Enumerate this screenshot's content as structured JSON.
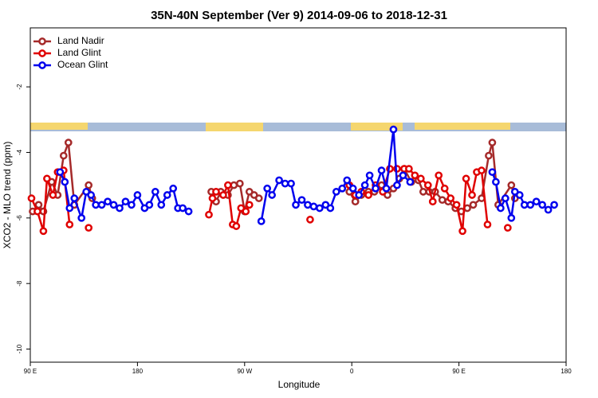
{
  "chart_data": {
    "type": "line",
    "title": "35N-40N September (Ver 9)   2014-09-06 to 2018-12-31",
    "xlabel": "Longitude",
    "ylabel": "XCO2 - MLO trend (ppm)",
    "xlim": [
      90,
      540
    ],
    "ylim": [
      -10.4,
      -0.2
    ],
    "xticks": [
      {
        "value": 90,
        "label": "90 E"
      },
      180,
      {
        "value": 270,
        "label": "90 W"
      },
      {
        "value": 360,
        "label": "0"
      },
      {
        "value": 450,
        "label": "90 E"
      },
      {
        "value": 540,
        "label": "180"
      }
    ],
    "yticks": [
      -2,
      -4,
      -6,
      -8,
      -10
    ],
    "legend": "upper left",
    "series": [
      {
        "name": "Land Nadir",
        "color": "#a52a2a",
        "x": [
          92,
          97,
          101,
          108,
          113,
          118,
          122,
          127,
          139,
          142,
          null,
          242,
          246,
          250,
          256,
          261,
          266,
          270,
          274,
          278,
          282,
          null,
          358,
          363,
          368,
          374,
          379,
          385,
          390,
          395,
          400,
          404,
          410,
          416,
          420,
          425,
          430,
          436,
          441,
          447,
          452,
          457,
          462,
          469,
          475,
          478,
          483,
          494,
          497
        ],
        "values": [
          -5.8,
          -5.6,
          -5.8,
          -4.9,
          -5.3,
          -4.1,
          -3.7,
          -5.6,
          -5.0,
          -5.4,
          null,
          -5.2,
          -5.5,
          -5.2,
          -5.3,
          -5.0,
          -4.95,
          -5.8,
          -5.2,
          -5.3,
          -5.4,
          null,
          -5.2,
          -5.5,
          -5.3,
          -5.2,
          -5.2,
          -5.0,
          -5.3,
          -5.1,
          -4.8,
          -4.5,
          -4.9,
          -4.85,
          -5.2,
          -5.2,
          -5.2,
          -5.45,
          -5.5,
          -5.7,
          -5.8,
          -5.7,
          -5.6,
          -5.4,
          -4.1,
          -3.7,
          -5.6,
          -5.0,
          -5.4
        ]
      },
      {
        "name": "Land Glint",
        "color": "#e00000",
        "x": [
          91,
          96,
          101,
          104,
          109,
          113,
          118,
          123,
          null,
          139,
          null,
          240,
          243,
          246,
          252,
          256,
          260,
          263,
          267,
          271,
          274,
          null,
          325,
          null,
          358,
          363,
          368,
          374,
          380,
          386,
          392,
          398,
          404,
          408,
          413,
          418,
          424,
          428,
          433,
          438,
          443,
          448,
          453,
          456,
          461,
          465,
          469,
          474,
          null,
          491
        ],
        "values": [
          -5.4,
          -5.8,
          -6.4,
          -4.8,
          -5.3,
          -4.6,
          -4.55,
          -6.2,
          null,
          -6.3,
          null,
          -5.9,
          -5.4,
          -5.2,
          -5.3,
          -5.0,
          -6.2,
          -6.25,
          -5.7,
          -5.8,
          -5.6,
          null,
          -6.05,
          null,
          -5.0,
          -5.3,
          -5.2,
          -5.3,
          -5.0,
          -5.2,
          -4.5,
          -4.5,
          -4.5,
          -4.5,
          -4.7,
          -4.8,
          -5.0,
          -5.5,
          -4.7,
          -5.1,
          -5.4,
          -5.6,
          -6.4,
          -4.8,
          -5.3,
          -4.6,
          -4.55,
          -6.2,
          null,
          -6.3
        ]
      },
      {
        "name": "Ocean Glint",
        "color": "#0000ee",
        "x": [
          115,
          119,
          123,
          127,
          133,
          137,
          141,
          145,
          150,
          155,
          160,
          165,
          170,
          175,
          180,
          186,
          190,
          195,
          200,
          205,
          210,
          214,
          218,
          223,
          null,
          284,
          289,
          293,
          299,
          304,
          309,
          313,
          318,
          323,
          328,
          333,
          338,
          342,
          347,
          352,
          356,
          361,
          366,
          371,
          375,
          380,
          385,
          389,
          395,
          398,
          403,
          409,
          null,
          478,
          481,
          485,
          489,
          494,
          497,
          501,
          505,
          510,
          515,
          520,
          525,
          530
        ],
        "values": [
          -4.6,
          -4.9,
          -5.7,
          -5.4,
          -6.0,
          -5.2,
          -5.3,
          -5.6,
          -5.6,
          -5.5,
          -5.6,
          -5.7,
          -5.5,
          -5.6,
          -5.3,
          -5.7,
          -5.6,
          -5.2,
          -5.6,
          -5.3,
          -5.1,
          -5.7,
          -5.7,
          -5.8,
          null,
          -6.1,
          -5.1,
          -5.3,
          -4.85,
          -4.95,
          -4.95,
          -5.6,
          -5.45,
          -5.6,
          -5.65,
          -5.7,
          -5.6,
          -5.7,
          -5.2,
          -5.1,
          -4.85,
          -5.1,
          -5.3,
          -5.0,
          -4.7,
          -5.1,
          -4.55,
          -5.1,
          -3.3,
          -5.0,
          -4.7,
          -4.9,
          null,
          -4.6,
          -4.9,
          -5.7,
          -5.4,
          -6.0,
          -5.2,
          -5.3,
          -5.6,
          -5.6,
          -5.5,
          -5.6,
          -5.75,
          -5.6
        ]
      }
    ]
  }
}
